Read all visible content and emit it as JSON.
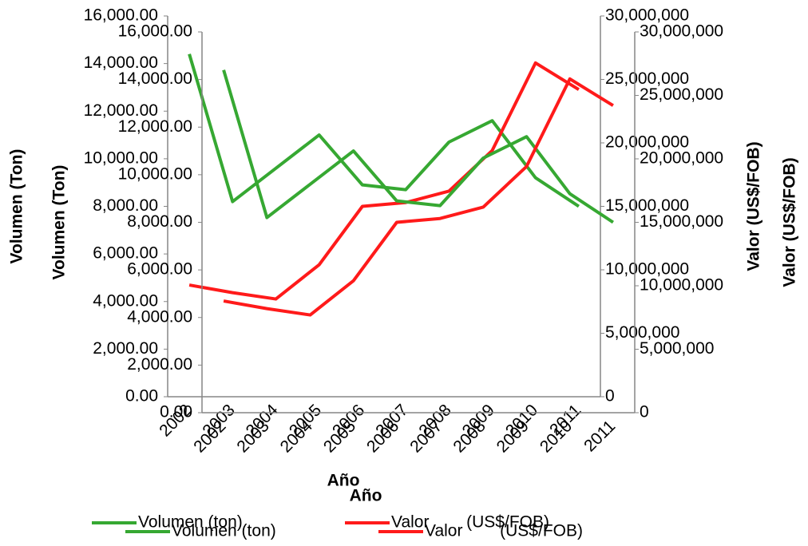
{
  "chart_data": [
    {
      "type": "line",
      "x_label": "Año",
      "y_label": "Volumen (Ton)",
      "y2_label": "Valor (US$/FOB)",
      "categories": [
        "2002",
        "2003",
        "2004",
        "2005",
        "2006",
        "2007",
        "2008",
        "2009",
        "2010",
        "2011"
      ],
      "series": [
        {
          "name": "Volumen (ton)",
          "color": "#36a832",
          "values": [
            14400,
            8200,
            9600,
            11000,
            8900,
            8700,
            10700,
            11600,
            9200,
            8000
          ]
        },
        {
          "name": "Valor        (US$/FOB)",
          "color": "#ff1a1a",
          "axis": "y2",
          "values": [
            8800000,
            8200000,
            7700000,
            10400000,
            15000000,
            15300000,
            16200000,
            19400000,
            26300000,
            24200000
          ]
        }
      ],
      "ylim": [
        0,
        16000
      ],
      "yticks": [
        {
          "value": 0,
          "label": "0.00"
        },
        {
          "value": 2000,
          "label": "2,000.00"
        },
        {
          "value": 4000,
          "label": "4,000.00"
        },
        {
          "value": 6000,
          "label": "6,000.00"
        },
        {
          "value": 8000,
          "label": "8,000.00"
        },
        {
          "value": 10000,
          "label": "10,000.00"
        },
        {
          "value": 12000,
          "label": "12,000.00"
        },
        {
          "value": 14000,
          "label": "14,000.00"
        },
        {
          "value": 16000,
          "label": "16,000.00"
        }
      ],
      "y2lim": [
        0,
        30000000
      ],
      "y2ticks": [
        0,
        {
          "value": 5000000,
          "label": "5,000,000"
        },
        {
          "value": 10000000,
          "label": "10,000,000"
        },
        {
          "value": 15000000,
          "label": "15,000,000"
        },
        {
          "value": 20000000,
          "label": "20,000,000"
        },
        {
          "value": 25000000,
          "label": "25,000,000"
        },
        {
          "value": 30000000,
          "label": "30,000,000"
        }
      ],
      "legend": "bottom"
    },
    {
      "type": "line",
      "x_label": "Año",
      "y_label": "Volumen (Ton)",
      "y2_label": "Valor (US$/FOB)",
      "categories": [
        "2002",
        "2003",
        "2004",
        "2005",
        "2006",
        "2007",
        "2008",
        "2009",
        "2010",
        "2011"
      ],
      "series": [
        {
          "name": "Volumen (ton)",
          "color": "#36a832",
          "values": [
            14400,
            8200,
            9600,
            11000,
            8900,
            8700,
            10700,
            11600,
            9200,
            8000
          ]
        },
        {
          "name": "Valor        (US$/FOB)",
          "color": "#ff1a1a",
          "axis": "y2",
          "values": [
            8800000,
            8200000,
            7700000,
            10400000,
            15000000,
            15300000,
            16200000,
            19400000,
            26300000,
            24200000
          ]
        }
      ],
      "ylim": [
        0,
        16000
      ],
      "yticks": [
        {
          "value": 0,
          "label": "0.00"
        },
        {
          "value": 2000,
          "label": "2,000.00"
        },
        {
          "value": 4000,
          "label": "4,000.00"
        },
        {
          "value": 6000,
          "label": "6,000.00"
        },
        {
          "value": 8000,
          "label": "8,000.00"
        },
        {
          "value": 10000,
          "label": "10,000.00"
        },
        {
          "value": 12000,
          "label": "12,000.00"
        },
        {
          "value": 14000,
          "label": "14,000.00"
        },
        {
          "value": 16000,
          "label": "16,000.00"
        }
      ],
      "y2lim": [
        0,
        30000000
      ],
      "y2ticks": [
        0,
        {
          "value": 5000000,
          "label": "5,000,000"
        },
        {
          "value": 10000000,
          "label": "10,000,000"
        },
        {
          "value": 15000000,
          "label": "15,000,000"
        },
        {
          "value": 20000000,
          "label": "20,000,000"
        },
        {
          "value": 25000000,
          "label": "25,000,000"
        },
        {
          "value": 30000000,
          "label": "30,000,000"
        }
      ],
      "legend": "bottom"
    }
  ]
}
